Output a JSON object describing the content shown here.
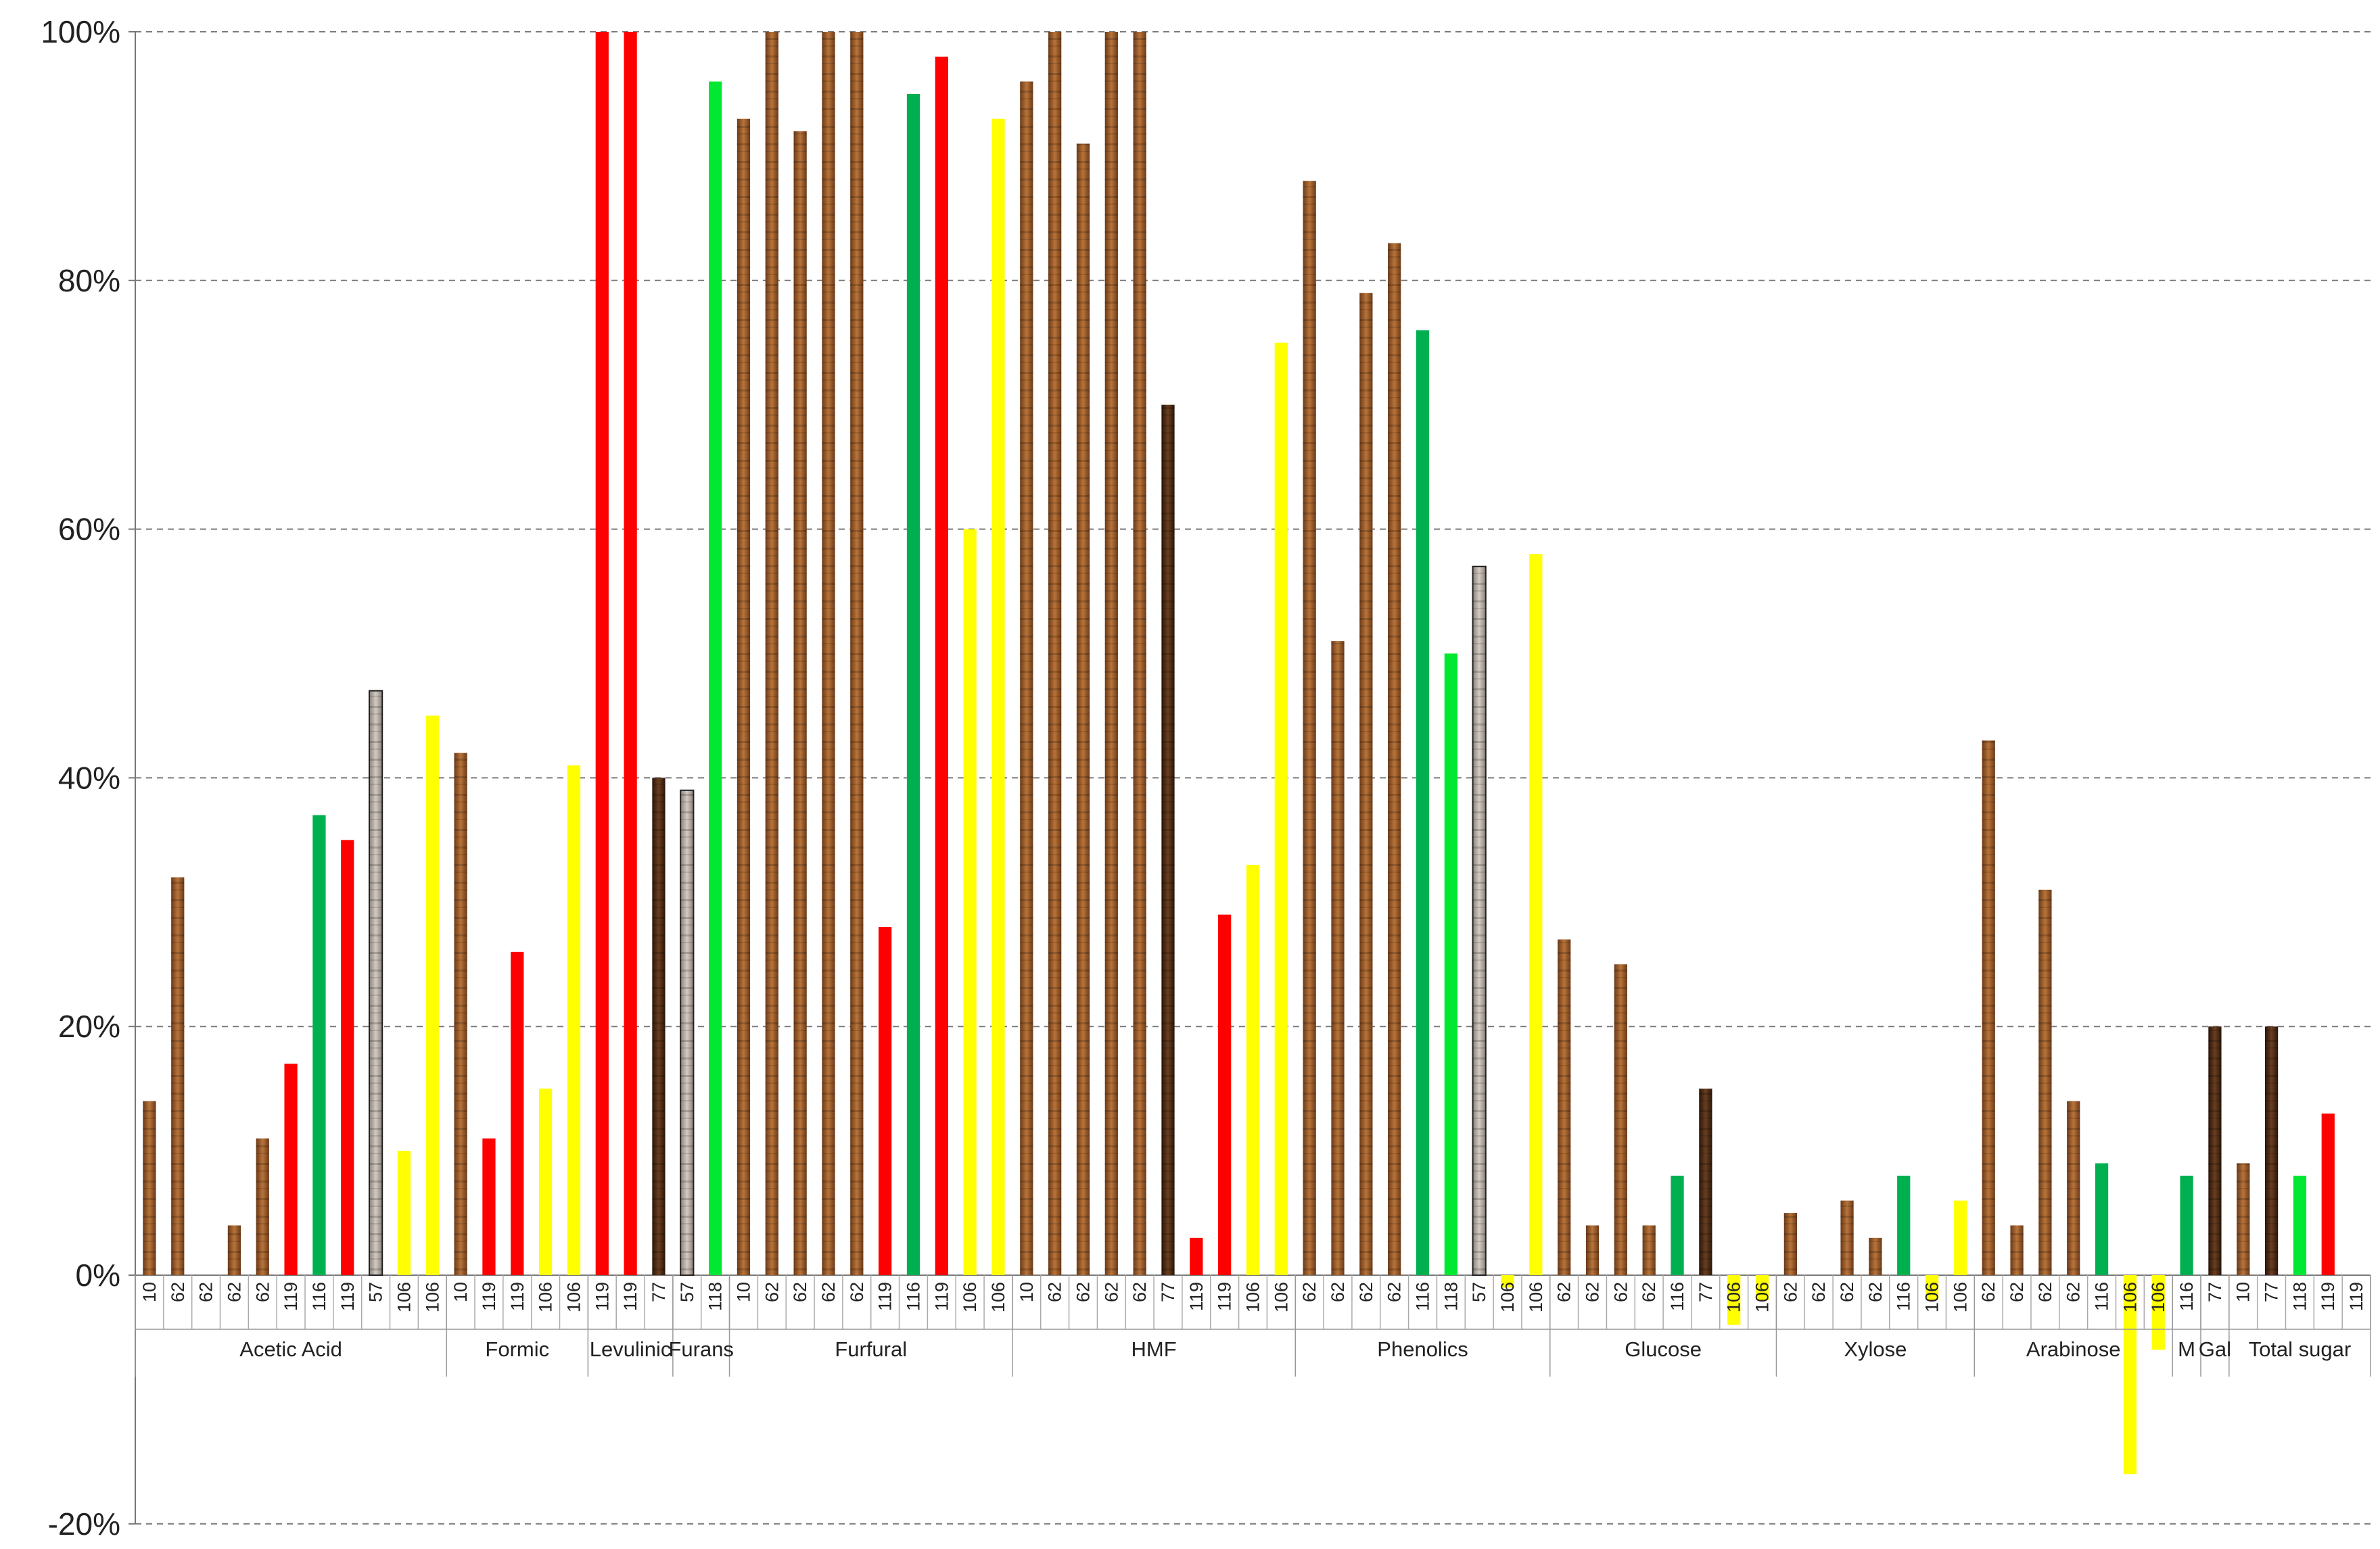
{
  "chart_data": {
    "type": "bar",
    "title": "",
    "xlabel": "",
    "ylabel": "",
    "ylim": [
      -20,
      100
    ],
    "y_ticks": [
      100,
      80,
      60,
      40,
      20,
      0,
      -20
    ],
    "y_tick_labels": [
      "100%",
      "80%",
      "60%",
      "40%",
      "20%",
      "0%",
      "-20%"
    ],
    "grid": "horizontal dashed",
    "legend": "none",
    "colors": {
      "brown": "#9c5a2a",
      "dark_brown": "#4a2a14",
      "red": "#ff0000",
      "green": "#00b050",
      "bright_green": "#00e832",
      "yellow": "#ffff00",
      "gray": "#b0a8a0"
    },
    "groups": [
      {
        "label": "Acetic Acid",
        "bars": [
          {
            "x": "10",
            "value": 14,
            "color": "brown"
          },
          {
            "x": "62",
            "value": 32,
            "color": "brown"
          },
          {
            "x": "62",
            "value": 0,
            "color": "brown"
          },
          {
            "x": "62",
            "value": 4,
            "color": "brown"
          },
          {
            "x": "62",
            "value": 11,
            "color": "brown"
          },
          {
            "x": "119",
            "value": 17,
            "color": "red"
          },
          {
            "x": "116",
            "value": 37,
            "color": "green"
          },
          {
            "x": "119",
            "value": 35,
            "color": "red"
          },
          {
            "x": "57",
            "value": 47,
            "color": "gray"
          },
          {
            "x": "106",
            "value": 10,
            "color": "yellow"
          },
          {
            "x": "106",
            "value": 45,
            "color": "yellow"
          }
        ]
      },
      {
        "label": "Formic",
        "bars": [
          {
            "x": "10",
            "value": 42,
            "color": "brown"
          },
          {
            "x": "119",
            "value": 11,
            "color": "red"
          },
          {
            "x": "119",
            "value": 26,
            "color": "red"
          },
          {
            "x": "106",
            "value": 15,
            "color": "yellow"
          },
          {
            "x": "106",
            "value": 41,
            "color": "yellow"
          }
        ]
      },
      {
        "label": "Levulinic",
        "bars": [
          {
            "x": "119",
            "value": 100,
            "color": "red"
          },
          {
            "x": "119",
            "value": 100,
            "color": "red"
          },
          {
            "x": "77",
            "value": 40,
            "color": "dark_brown"
          }
        ]
      },
      {
        "label": "Furans",
        "bars": [
          {
            "x": "57",
            "value": 39,
            "color": "gray"
          },
          {
            "x": "118",
            "value": 96,
            "color": "bright_green"
          }
        ]
      },
      {
        "label": "Furfural",
        "bars": [
          {
            "x": "10",
            "value": 93,
            "color": "brown"
          },
          {
            "x": "62",
            "value": 100,
            "color": "brown"
          },
          {
            "x": "62",
            "value": 92,
            "color": "brown"
          },
          {
            "x": "62",
            "value": 100,
            "color": "brown"
          },
          {
            "x": "62",
            "value": 100,
            "color": "brown"
          },
          {
            "x": "119",
            "value": 28,
            "color": "red"
          },
          {
            "x": "116",
            "value": 95,
            "color": "green"
          },
          {
            "x": "119",
            "value": 98,
            "color": "red"
          },
          {
            "x": "106",
            "value": 60,
            "color": "yellow"
          },
          {
            "x": "106",
            "value": 93,
            "color": "yellow"
          }
        ]
      },
      {
        "label": "HMF",
        "bars": [
          {
            "x": "10",
            "value": 96,
            "color": "brown"
          },
          {
            "x": "62",
            "value": 100,
            "color": "brown"
          },
          {
            "x": "62",
            "value": 91,
            "color": "brown"
          },
          {
            "x": "62",
            "value": 100,
            "color": "brown"
          },
          {
            "x": "62",
            "value": 100,
            "color": "brown"
          },
          {
            "x": "77",
            "value": 70,
            "color": "dark_brown"
          },
          {
            "x": "119",
            "value": 3,
            "color": "red"
          },
          {
            "x": "119",
            "value": 29,
            "color": "red"
          },
          {
            "x": "106",
            "value": 33,
            "color": "yellow"
          },
          {
            "x": "106",
            "value": 75,
            "color": "yellow"
          }
        ]
      },
      {
        "label": "Phenolics",
        "bars": [
          {
            "x": "62",
            "value": 88,
            "color": "brown"
          },
          {
            "x": "62",
            "value": 51,
            "color": "brown"
          },
          {
            "x": "62",
            "value": 79,
            "color": "brown"
          },
          {
            "x": "62",
            "value": 83,
            "color": "brown"
          },
          {
            "x": "116",
            "value": 76,
            "color": "green"
          },
          {
            "x": "118",
            "value": 50,
            "color": "bright_green"
          },
          {
            "x": "57",
            "value": 57,
            "color": "gray"
          },
          {
            "x": "106",
            "value": -1,
            "color": "yellow"
          },
          {
            "x": "106",
            "value": 58,
            "color": "yellow"
          }
        ]
      },
      {
        "label": "Glucose",
        "bars": [
          {
            "x": "62",
            "value": 27,
            "color": "brown"
          },
          {
            "x": "62",
            "value": 4,
            "color": "brown"
          },
          {
            "x": "62",
            "value": 25,
            "color": "brown"
          },
          {
            "x": "62",
            "value": 4,
            "color": "brown"
          },
          {
            "x": "116",
            "value": 8,
            "color": "green"
          },
          {
            "x": "77",
            "value": 15,
            "color": "dark_brown"
          },
          {
            "x": "106",
            "value": -4,
            "color": "yellow"
          },
          {
            "x": "106",
            "value": -2,
            "color": "yellow"
          }
        ]
      },
      {
        "label": "Xylose",
        "bars": [
          {
            "x": "62",
            "value": 5,
            "color": "brown"
          },
          {
            "x": "62",
            "value": 0,
            "color": "brown"
          },
          {
            "x": "62",
            "value": 6,
            "color": "brown"
          },
          {
            "x": "62",
            "value": 3,
            "color": "brown"
          },
          {
            "x": "116",
            "value": 8,
            "color": "green"
          },
          {
            "x": "106",
            "value": -2,
            "color": "yellow"
          },
          {
            "x": "106",
            "value": 6,
            "color": "yellow"
          }
        ]
      },
      {
        "label": "Arabinose",
        "bars": [
          {
            "x": "62",
            "value": 43,
            "color": "brown"
          },
          {
            "x": "62",
            "value": 4,
            "color": "brown"
          },
          {
            "x": "62",
            "value": 31,
            "color": "brown"
          },
          {
            "x": "62",
            "value": 14,
            "color": "brown"
          },
          {
            "x": "116",
            "value": 9,
            "color": "green"
          },
          {
            "x": "106",
            "value": -16,
            "color": "yellow"
          },
          {
            "x": "106",
            "value": -6,
            "color": "yellow"
          }
        ]
      },
      {
        "label": "M",
        "bars": [
          {
            "x": "116",
            "value": 8,
            "color": "green"
          }
        ]
      },
      {
        "label": "Gal",
        "bars": [
          {
            "x": "77",
            "value": 20,
            "color": "dark_brown"
          }
        ]
      },
      {
        "label": "Total sugar",
        "bars": [
          {
            "x": "10",
            "value": 9,
            "color": "brown"
          },
          {
            "x": "77",
            "value": 20,
            "color": "dark_brown"
          },
          {
            "x": "118",
            "value": 8,
            "color": "bright_green"
          },
          {
            "x": "119",
            "value": 13,
            "color": "red"
          },
          {
            "x": "119",
            "value": 0,
            "color": "red"
          }
        ]
      }
    ]
  }
}
